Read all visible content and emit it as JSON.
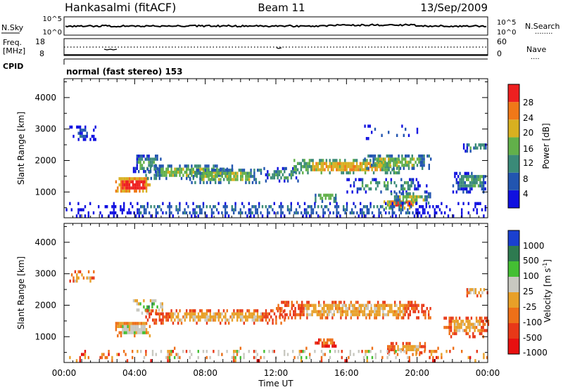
{
  "header": {
    "station": "Hankasalmi (fitACF)",
    "beam": "Beam 11",
    "date": "13/Sep/2009"
  },
  "nsky_panel": {
    "left_label": "N.Sky",
    "right_label": "N.Search",
    "right_label_marker": "........",
    "ticks_left": [
      "10^5",
      "10^0"
    ],
    "ticks_right": [
      "10^5",
      "10^0"
    ]
  },
  "freq_panel": {
    "left_label_top": "Freq.",
    "left_label_bottom": "[MHz]",
    "left_ticks": [
      "18",
      "8"
    ],
    "right_label": "Nave",
    "right_label_marker": "....",
    "right_ticks": [
      "60",
      "0"
    ]
  },
  "cpid": {
    "label": "CPID",
    "value": "normal (fast stereo) 153"
  },
  "axes": {
    "ylabel": "Slant Range [km]",
    "xlabel": "Time UT",
    "x_tick_labels": [
      "00:00",
      "04:00",
      "08:00",
      "12:00",
      "16:00",
      "20:00",
      "00:00"
    ],
    "y_tick_labels": [
      "1000",
      "2000",
      "3000",
      "4000"
    ]
  },
  "power_colorbar": {
    "label": "Power [dB]",
    "ticks": [
      "4",
      "8",
      "12",
      "16",
      "20",
      "24",
      "28"
    ],
    "colors": [
      "#1010e0",
      "#2255b0",
      "#3a8a78",
      "#62b04a",
      "#d8b020",
      "#f07818",
      "#ee2020"
    ]
  },
  "velocity_colorbar": {
    "label": "Velocity [m s^-1]",
    "label_main": "Velocity [m s",
    "label_sup": "-1",
    "label_end": "]",
    "ticks": [
      "1000",
      "500",
      "100",
      "25",
      "-25",
      "-100",
      "-500",
      "-1000"
    ],
    "colors": [
      "#1a40d0",
      "#2e7a50",
      "#44bf33",
      "#c8c8c0",
      "#e8a028",
      "#ee7018",
      "#e83818",
      "#e81010"
    ]
  },
  "chart_data": [
    {
      "type": "heatmap",
      "title": "Power",
      "x": {
        "unit": "UT hours",
        "range": [
          0,
          24
        ]
      },
      "y": {
        "unit": "km",
        "range": [
          180,
          4600
        ]
      },
      "regions": [
        {
          "t0": 0.3,
          "t1": 1.8,
          "r0": 2620,
          "r1": 3060,
          "level": 1,
          "density": 0.45
        },
        {
          "t0": 2.9,
          "t1": 4.9,
          "r0": 980,
          "r1": 1420,
          "level": 6,
          "density": 0.95
        },
        {
          "t0": 3.9,
          "t1": 5.5,
          "r0": 1600,
          "r1": 2150,
          "level": 2,
          "density": 0.7
        },
        {
          "t0": 4.6,
          "t1": 9.5,
          "r0": 1380,
          "r1": 1780,
          "level": 3,
          "density": 0.8
        },
        {
          "t0": 7.0,
          "t1": 11.2,
          "r0": 1250,
          "r1": 1700,
          "level": 3,
          "density": 0.7
        },
        {
          "t0": 11.2,
          "t1": 13.3,
          "r0": 1300,
          "r1": 1700,
          "level": 2,
          "density": 0.7
        },
        {
          "t0": 13.0,
          "t1": 19.0,
          "r0": 1560,
          "r1": 1960,
          "level": 4,
          "density": 0.85
        },
        {
          "t0": 17.0,
          "t1": 20.8,
          "r0": 1700,
          "r1": 2150,
          "level": 3,
          "density": 0.7
        },
        {
          "t0": 14.2,
          "t1": 15.4,
          "r0": 650,
          "r1": 900,
          "level": 3,
          "density": 0.8
        },
        {
          "t0": 16.0,
          "t1": 20.5,
          "r0": 950,
          "r1": 1400,
          "level": 2,
          "density": 0.45
        },
        {
          "t0": 18.1,
          "t1": 20.0,
          "r0": 440,
          "r1": 720,
          "level": 5,
          "density": 0.9
        },
        {
          "t0": 18.5,
          "t1": 20.8,
          "r0": 600,
          "r1": 900,
          "level": 3,
          "density": 0.7
        },
        {
          "t0": 22.0,
          "t1": 24.0,
          "r0": 950,
          "r1": 1600,
          "level": 2,
          "density": 0.8
        },
        {
          "t0": 22.6,
          "t1": 24.0,
          "r0": 2250,
          "r1": 2500,
          "level": 2,
          "density": 0.7
        },
        {
          "t0": 17.0,
          "t1": 20.0,
          "r0": 2650,
          "r1": 3100,
          "level": 1,
          "density": 0.18
        },
        {
          "t0": 0.0,
          "t1": 24.0,
          "r0": 190,
          "r1": 600,
          "level": 1,
          "density": 0.45
        }
      ]
    },
    {
      "type": "heatmap",
      "title": "Velocity",
      "x": {
        "unit": "UT hours",
        "range": [
          0,
          24
        ]
      },
      "y": {
        "unit": "km",
        "range": [
          180,
          4600
        ]
      },
      "regions": [
        {
          "t0": 0.3,
          "t1": 1.8,
          "r0": 2620,
          "r1": 3060,
          "level": 3,
          "density": 0.4
        },
        {
          "t0": 2.9,
          "t1": 4.9,
          "r0": 980,
          "r1": 1420,
          "level": 4,
          "density": 0.95
        },
        {
          "t0": 3.9,
          "t1": 5.6,
          "r0": 1700,
          "r1": 2150,
          "level": 5,
          "density": 0.6
        },
        {
          "t0": 4.6,
          "t1": 12.5,
          "r0": 1380,
          "r1": 1780,
          "level": 3,
          "density": 0.75
        },
        {
          "t0": 12.0,
          "t1": 20.8,
          "r0": 1550,
          "r1": 2050,
          "level": 3,
          "density": 0.8
        },
        {
          "t0": 14.2,
          "t1": 15.4,
          "r0": 650,
          "r1": 900,
          "level": 2,
          "density": 0.8
        },
        {
          "t0": 18.3,
          "t1": 20.5,
          "r0": 440,
          "r1": 750,
          "level": 3,
          "density": 0.85
        },
        {
          "t0": 21.5,
          "t1": 24.0,
          "r0": 950,
          "r1": 1600,
          "level": 3,
          "density": 0.7
        },
        {
          "t0": 22.6,
          "t1": 24.0,
          "r0": 2250,
          "r1": 2500,
          "level": 3,
          "density": 0.6
        },
        {
          "t0": 0.0,
          "t1": 24.0,
          "r0": 190,
          "r1": 600,
          "level": 4,
          "density": 0.25
        },
        {
          "t0": 0.0,
          "t1": 24.0,
          "r0": 190,
          "r1": 500,
          "level": 2,
          "density": 0.15
        }
      ]
    }
  ]
}
